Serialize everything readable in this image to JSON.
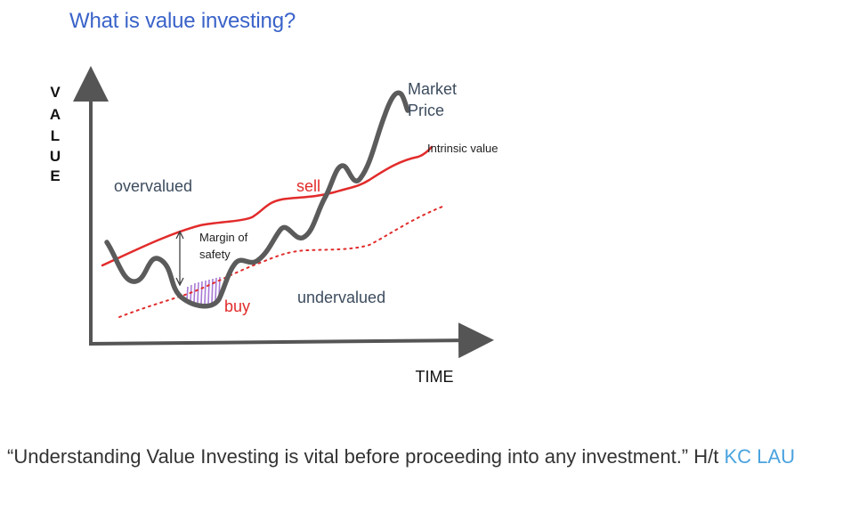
{
  "title": "What is value investing?",
  "diagram": {
    "y_axis_letters": [
      "V",
      "A",
      "L",
      "U",
      "E"
    ],
    "x_axis_label": "TIME",
    "labels": {
      "market_price_line1": "Market",
      "market_price_line2": "Price",
      "intrinsic_value": "Intrinsic value",
      "overvalued": "overvalued",
      "undervalued": "undervalued",
      "sell": "sell",
      "buy": "buy",
      "margin_line1": "Margin of",
      "margin_line2": "safety"
    },
    "colors": {
      "market_price": "#5b5b5b",
      "intrinsic_value": "#e22b2b",
      "margin_hatch": "#a87bd6",
      "axis": "#555555"
    }
  },
  "caption": {
    "text": "“Understanding Value Investing is vital before proceeding into any investment.” H/t ",
    "link": "KC LAU"
  },
  "colors": {
    "title": "#3a63c9",
    "link": "#4aa3df"
  }
}
